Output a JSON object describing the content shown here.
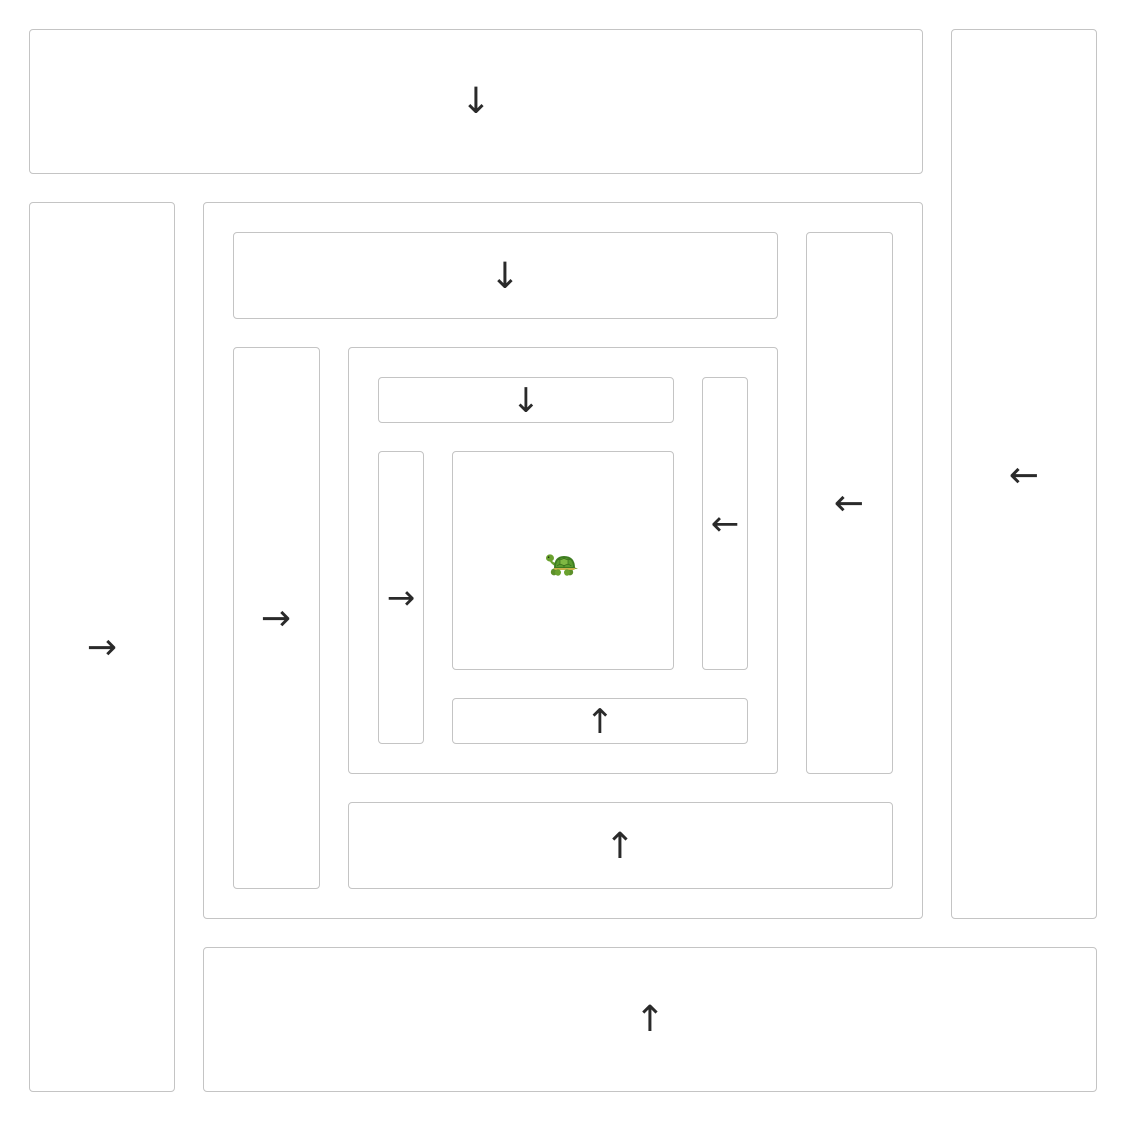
{
  "tiles": {
    "outer_top": "↓",
    "outer_right": "←",
    "outer_left": "→",
    "outer_bottom": "↑",
    "mid_top": "↓",
    "mid_right": "←",
    "mid_left": "→",
    "mid_bottom": "↑",
    "inner_top": "↓",
    "inner_right": "←",
    "inner_left": "→",
    "inner_bottom": "↑"
  },
  "center": {
    "icon": "turtle-icon"
  }
}
